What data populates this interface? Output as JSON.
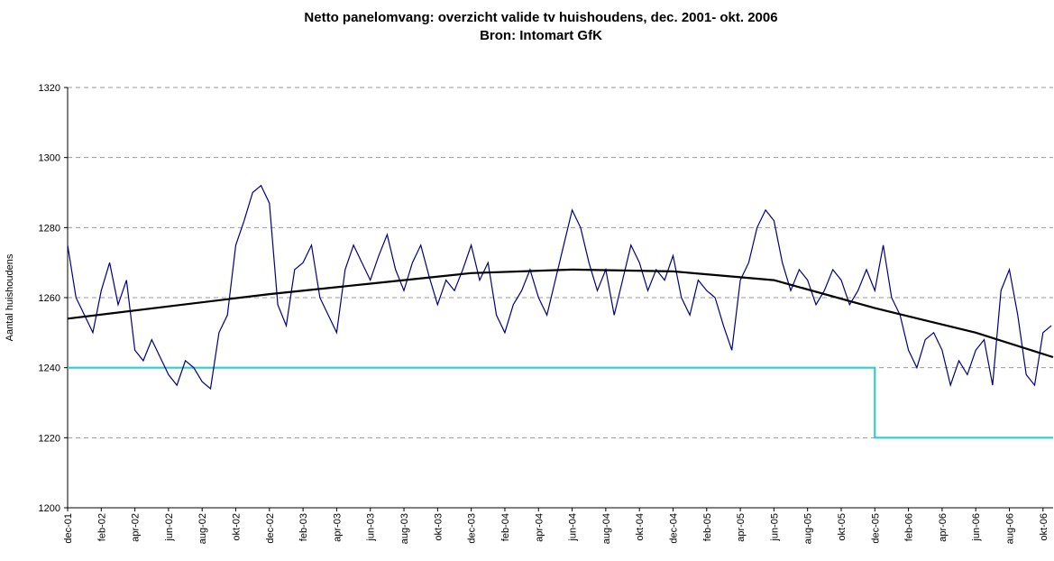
{
  "chart_data": {
    "type": "line",
    "title": "Netto panelomvang: overzicht valide tv huishoudens, dec. 2001- okt. 2006",
    "subtitle": "Bron: Intomart GfK",
    "y_label": "Aantal huishoudens",
    "xlim": [
      0,
      58.6
    ],
    "xticks": [
      {
        "value": 0,
        "label": "dec-01"
      },
      {
        "value": 2,
        "label": "feb-02"
      },
      {
        "value": 4,
        "label": "apr-02"
      },
      {
        "value": 6,
        "label": "jun-02"
      },
      {
        "value": 8,
        "label": "aug-02"
      },
      {
        "value": 10,
        "label": "okt-02"
      },
      {
        "value": 12,
        "label": "dec-02"
      },
      {
        "value": 14,
        "label": "feb-03"
      },
      {
        "value": 16,
        "label": "apr-03"
      },
      {
        "value": 18,
        "label": "jun-03"
      },
      {
        "value": 20,
        "label": "aug-03"
      },
      {
        "value": 22,
        "label": "okt-03"
      },
      {
        "value": 24,
        "label": "dec-03"
      },
      {
        "value": 26,
        "label": "feb-04"
      },
      {
        "value": 28,
        "label": "apr-04"
      },
      {
        "value": 30,
        "label": "jun-04"
      },
      {
        "value": 32,
        "label": "aug-04"
      },
      {
        "value": 34,
        "label": "okt-04"
      },
      {
        "value": 36,
        "label": "dec-04"
      },
      {
        "value": 38,
        "label": "feb-05"
      },
      {
        "value": 40,
        "label": "apr-05"
      },
      {
        "value": 42,
        "label": "jun-05"
      },
      {
        "value": 44,
        "label": "aug-05"
      },
      {
        "value": 46,
        "label": "okt-05"
      },
      {
        "value": 48,
        "label": "dec-05"
      },
      {
        "value": 50,
        "label": "feb-06"
      },
      {
        "value": 52,
        "label": "apr-06"
      },
      {
        "value": 54,
        "label": "jun-06"
      },
      {
        "value": 56,
        "label": "aug-06"
      },
      {
        "value": 58,
        "label": "okt-06"
      }
    ],
    "ylim": [
      1200,
      1320
    ],
    "yticks": [
      1200,
      1220,
      1240,
      1260,
      1280,
      1300,
      1320
    ],
    "grid": true,
    "series": [
      {
        "color": "#000080",
        "x": [
          0,
          0.5,
          1,
          1.5,
          2,
          2.5,
          3,
          3.5,
          4,
          4.5,
          5,
          5.5,
          6,
          6.5,
          7,
          7.5,
          8,
          8.5,
          9,
          9.5,
          10,
          10.5,
          11,
          11.5,
          12,
          12.5,
          13,
          13.5,
          14,
          14.5,
          15,
          15.5,
          16,
          16.5,
          17,
          17.5,
          18,
          18.5,
          19,
          19.5,
          20,
          20.5,
          21,
          21.5,
          22,
          22.5,
          23,
          23.5,
          24,
          24.5,
          25,
          25.5,
          26,
          26.5,
          27,
          27.5,
          28,
          28.5,
          29,
          29.5,
          30,
          30.5,
          31,
          31.5,
          32,
          32.5,
          33,
          33.5,
          34,
          34.5,
          35,
          35.5,
          36,
          36.5,
          37,
          37.5,
          38,
          38.5,
          39,
          39.5,
          40,
          40.5,
          41,
          41.5,
          42,
          42.5,
          43,
          43.5,
          44,
          44.5,
          45,
          45.5,
          46,
          46.5,
          47,
          47.5,
          48,
          48.5,
          49,
          49.5,
          50,
          50.5,
          51,
          51.5,
          52,
          52.5,
          53,
          53.5,
          54,
          54.5,
          55,
          55.5,
          56,
          56.5,
          57,
          57.5,
          58,
          58.5
        ],
        "values": [
          1275,
          1260,
          1255,
          1250,
          1262,
          1270,
          1258,
          1265,
          1245,
          1242,
          1248,
          1243,
          1238,
          1235,
          1242,
          1240,
          1236,
          1234,
          1250,
          1255,
          1275,
          1282,
          1290,
          1292,
          1287,
          1258,
          1252,
          1268,
          1270,
          1275,
          1260,
          1255,
          1250,
          1268,
          1275,
          1270,
          1265,
          1272,
          1278,
          1268,
          1262,
          1270,
          1275,
          1266,
          1258,
          1265,
          1262,
          1268,
          1275,
          1265,
          1270,
          1255,
          1250,
          1258,
          1262,
          1268,
          1260,
          1255,
          1265,
          1275,
          1285,
          1280,
          1270,
          1262,
          1268,
          1255,
          1265,
          1275,
          1270,
          1262,
          1268,
          1265,
          1272,
          1260,
          1255,
          1265,
          1262,
          1260,
          1252,
          1245,
          1265,
          1270,
          1280,
          1285,
          1282,
          1270,
          1262,
          1268,
          1265,
          1258,
          1262,
          1268,
          1265,
          1258,
          1262,
          1268,
          1262,
          1275,
          1260,
          1255,
          1245,
          1240,
          1248,
          1250,
          1245,
          1235,
          1242,
          1238,
          1245,
          1248,
          1235,
          1262,
          1268,
          1255,
          1238,
          1235,
          1250,
          1252
        ]
      },
      {
        "color": "#000000",
        "x": [
          0,
          6,
          12,
          18,
          24,
          30,
          36,
          42,
          48,
          54,
          58.6
        ],
        "values": [
          1254,
          1257.5,
          1261,
          1264,
          1267,
          1268,
          1267.5,
          1265,
          1257,
          1250,
          1243
        ]
      },
      {
        "color": "#33cccc",
        "x": [
          0,
          48,
          48,
          58.6
        ],
        "values": [
          1240,
          1240,
          1220,
          1220
        ]
      }
    ]
  }
}
